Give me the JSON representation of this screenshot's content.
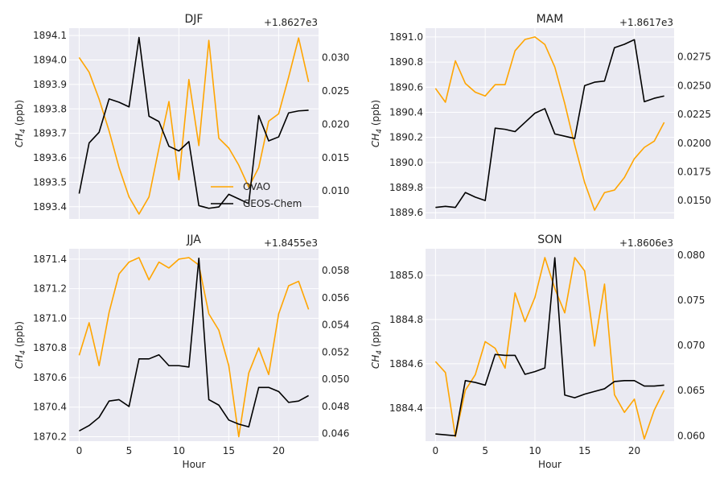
{
  "figure": {
    "xlabel": "Hour",
    "colors": {
      "ovao": "#FFA500",
      "geos": "#000000",
      "grid": "#FFFFFF",
      "background": "#EAEAF2"
    }
  },
  "legend": {
    "location": "center-right of top-left panel",
    "entries": [
      {
        "name": "OVAO",
        "color": "#FFA500"
      },
      {
        "name": "GEOS-Chem",
        "color": "#000000"
      }
    ]
  },
  "chart_data": [
    {
      "type": "line",
      "title": "DJF",
      "ylabel": "CH4 (ppb)",
      "ylabel_main": "CH",
      "ylabel_sub": "4",
      "ylabel_rest": " (ppb)",
      "xlim": [
        -1,
        24
      ],
      "xticks": [
        0,
        5,
        10,
        15,
        20
      ],
      "ylim": [
        1893.35,
        1894.13
      ],
      "yticks": [
        1893.4,
        1893.5,
        1893.6,
        1893.7,
        1893.8,
        1893.9,
        1894.0,
        1894.1
      ],
      "ytick_labels": [
        "1893.4",
        "1893.5",
        "1893.6",
        "1893.7",
        "1893.8",
        "1893.9",
        "1894.0",
        "1894.1"
      ],
      "y2lim": [
        0.0058,
        0.0344
      ],
      "y2ticks": [
        0.01,
        0.015,
        0.02,
        0.025,
        0.03
      ],
      "y2tick_labels": [
        "0.010",
        "0.015",
        "0.020",
        "0.025",
        "0.030"
      ],
      "offset_text": "+1.8627e3",
      "series": [
        {
          "name": "OVAO",
          "axis": "left",
          "color": "#FFA500",
          "x": [
            0,
            1,
            2,
            3,
            4,
            5,
            6,
            7,
            8,
            9,
            10,
            11,
            12,
            13,
            14,
            15,
            16,
            17,
            18,
            19,
            20,
            21,
            22,
            23
          ],
          "values": [
            1894.01,
            1893.95,
            1893.84,
            1893.71,
            1893.56,
            1893.44,
            1893.37,
            1893.44,
            1893.64,
            1893.83,
            1893.51,
            1893.92,
            1893.65,
            1894.08,
            1893.68,
            1893.64,
            1893.57,
            1893.48,
            1893.56,
            1893.75,
            1893.78,
            1893.93,
            1894.09,
            1893.91
          ]
        },
        {
          "name": "GEOS-Chem",
          "axis": "right",
          "color": "#000000",
          "x": [
            0,
            1,
            2,
            3,
            4,
            5,
            6,
            7,
            8,
            9,
            10,
            11,
            12,
            13,
            14,
            15,
            16,
            17,
            18,
            19,
            20,
            21,
            22,
            23
          ],
          "values": [
            0.0096,
            0.0172,
            0.0188,
            0.0238,
            0.0233,
            0.0226,
            0.033,
            0.0212,
            0.0204,
            0.0167,
            0.016,
            0.0174,
            0.0078,
            0.0074,
            0.0076,
            0.0095,
            0.0088,
            0.0081,
            0.0213,
            0.0175,
            0.0181,
            0.0217,
            0.022,
            0.0221
          ]
        }
      ]
    },
    {
      "type": "line",
      "title": "MAM",
      "ylabel": "CH4 (ppb)",
      "ylabel_main": "CH",
      "ylabel_sub": "4",
      "ylabel_rest": " (ppb)",
      "xlim": [
        -1,
        24
      ],
      "xticks": [
        0,
        5,
        10,
        15,
        20
      ],
      "ylim": [
        1889.55,
        1891.07
      ],
      "yticks": [
        1889.6,
        1889.8,
        1890.0,
        1890.2,
        1890.4,
        1890.6,
        1890.8,
        1891.0
      ],
      "ytick_labels": [
        "1889.6",
        "1889.8",
        "1890.0",
        "1890.2",
        "1890.4",
        "1890.6",
        "1890.8",
        "1891.0"
      ],
      "y2lim": [
        0.0134,
        0.03
      ],
      "y2ticks": [
        0.015,
        0.0175,
        0.02,
        0.0225,
        0.025,
        0.0275
      ],
      "y2tick_labels": [
        "0.0150",
        "0.0175",
        "0.0200",
        "0.0225",
        "0.0250",
        "0.0275"
      ],
      "offset_text": "+1.8617e3",
      "series": [
        {
          "name": "OVAO",
          "axis": "left",
          "color": "#FFA500",
          "x": [
            0,
            1,
            2,
            3,
            4,
            5,
            6,
            7,
            8,
            9,
            10,
            11,
            12,
            13,
            14,
            15,
            16,
            17,
            18,
            19,
            20,
            21,
            22,
            23
          ],
          "values": [
            1890.59,
            1890.48,
            1890.81,
            1890.63,
            1890.56,
            1890.53,
            1890.62,
            1890.62,
            1890.89,
            1890.98,
            1891.0,
            1890.94,
            1890.76,
            1890.47,
            1890.14,
            1889.84,
            1889.62,
            1889.76,
            1889.78,
            1889.88,
            1890.03,
            1890.12,
            1890.17,
            1890.32
          ]
        },
        {
          "name": "GEOS-Chem",
          "axis": "right",
          "color": "#000000",
          "x": [
            0,
            1,
            2,
            3,
            4,
            5,
            6,
            7,
            8,
            9,
            10,
            11,
            12,
            13,
            14,
            15,
            16,
            17,
            18,
            19,
            20,
            21,
            22,
            23
          ],
          "values": [
            0.0144,
            0.0145,
            0.0144,
            0.0157,
            0.0153,
            0.015,
            0.0213,
            0.0212,
            0.021,
            0.0218,
            0.0226,
            0.023,
            0.0208,
            0.0206,
            0.0204,
            0.025,
            0.0253,
            0.0254,
            0.0283,
            0.0286,
            0.029,
            0.0236,
            0.0239,
            0.0241
          ]
        }
      ]
    },
    {
      "type": "line",
      "title": "JJA",
      "ylabel": "CH4 (ppb)",
      "ylabel_main": "CH",
      "ylabel_sub": "4",
      "ylabel_rest": " (ppb)",
      "xlim": [
        -1,
        24
      ],
      "xticks": [
        0,
        5,
        10,
        15,
        20
      ],
      "ylim": [
        1870.17,
        1871.47
      ],
      "yticks": [
        1870.2,
        1870.4,
        1870.6,
        1870.8,
        1871.0,
        1871.2,
        1871.4
      ],
      "ytick_labels": [
        "1870.2",
        "1870.4",
        "1870.6",
        "1870.8",
        "1871.0",
        "1871.2",
        "1871.4"
      ],
      "y2lim": [
        0.04545,
        0.0596
      ],
      "y2ticks": [
        0.046,
        0.048,
        0.05,
        0.052,
        0.054,
        0.056,
        0.058
      ],
      "y2tick_labels": [
        "0.046",
        "0.048",
        "0.050",
        "0.052",
        "0.054",
        "0.056",
        "0.058"
      ],
      "offset_text": "+1.8455e3",
      "series": [
        {
          "name": "OVAO",
          "axis": "left",
          "color": "#FFA500",
          "x": [
            0,
            1,
            2,
            3,
            4,
            5,
            6,
            7,
            8,
            9,
            10,
            11,
            12,
            13,
            14,
            15,
            16,
            17,
            18,
            19,
            20,
            21,
            22,
            23
          ],
          "values": [
            1870.75,
            1870.97,
            1870.68,
            1871.04,
            1871.3,
            1871.38,
            1871.41,
            1871.26,
            1871.38,
            1871.34,
            1871.4,
            1871.41,
            1871.36,
            1871.03,
            1870.92,
            1870.68,
            1870.2,
            1870.63,
            1870.8,
            1870.62,
            1871.03,
            1871.22,
            1871.25,
            1871.06
          ]
        },
        {
          "name": "GEOS-Chem",
          "axis": "right",
          "color": "#000000",
          "x": [
            0,
            1,
            2,
            3,
            4,
            5,
            6,
            7,
            8,
            9,
            10,
            11,
            12,
            13,
            14,
            15,
            16,
            17,
            18,
            19,
            20,
            21,
            22,
            23
          ],
          "values": [
            0.0462,
            0.0466,
            0.0472,
            0.0484,
            0.0485,
            0.048,
            0.0515,
            0.0515,
            0.0518,
            0.051,
            0.051,
            0.0509,
            0.0589,
            0.0485,
            0.0481,
            0.047,
            0.0467,
            0.0465,
            0.0494,
            0.0494,
            0.0491,
            0.0483,
            0.0484,
            0.0488
          ]
        }
      ]
    },
    {
      "type": "line",
      "title": "SON",
      "ylabel": "CH4 (ppb)",
      "ylabel_main": "CH",
      "ylabel_sub": "4",
      "ylabel_rest": " (ppb)",
      "xlim": [
        -1,
        24
      ],
      "xticks": [
        0,
        5,
        10,
        15,
        20
      ],
      "ylim": [
        1884.25,
        1885.12
      ],
      "yticks": [
        1884.4,
        1884.6,
        1884.8,
        1885.0
      ],
      "ytick_labels": [
        "1884.4",
        "1884.6",
        "1884.8",
        "1885.0"
      ],
      "y2lim": [
        0.0594,
        0.0807
      ],
      "y2ticks": [
        0.06,
        0.065,
        0.07,
        0.075,
        0.08
      ],
      "y2tick_labels": [
        "0.060",
        "0.065",
        "0.070",
        "0.075",
        "0.080"
      ],
      "offset_text": "+1.8606e3",
      "series": [
        {
          "name": "OVAO",
          "axis": "left",
          "color": "#FFA500",
          "x": [
            0,
            1,
            2,
            3,
            4,
            5,
            6,
            7,
            8,
            9,
            10,
            11,
            12,
            13,
            14,
            15,
            16,
            17,
            18,
            19,
            20,
            21,
            22,
            23
          ],
          "values": [
            1884.61,
            1884.56,
            1884.27,
            1884.48,
            1884.55,
            1884.7,
            1884.67,
            1884.58,
            1884.92,
            1884.79,
            1884.9,
            1885.08,
            1884.94,
            1884.83,
            1885.08,
            1885.02,
            1884.68,
            1884.96,
            1884.46,
            1884.38,
            1884.44,
            1884.26,
            1884.39,
            1884.48
          ]
        },
        {
          "name": "GEOS-Chem",
          "axis": "right",
          "color": "#000000",
          "x": [
            0,
            1,
            2,
            3,
            4,
            5,
            6,
            7,
            8,
            9,
            10,
            11,
            12,
            13,
            14,
            15,
            16,
            17,
            18,
            19,
            20,
            21,
            22,
            23
          ],
          "values": [
            0.0602,
            0.0601,
            0.06,
            0.0661,
            0.0659,
            0.0656,
            0.069,
            0.0689,
            0.0689,
            0.0668,
            0.0671,
            0.0675,
            0.0797,
            0.0645,
            0.0642,
            0.0646,
            0.0649,
            0.0652,
            0.066,
            0.0661,
            0.0661,
            0.0655,
            0.0655,
            0.0656
          ]
        }
      ]
    }
  ]
}
